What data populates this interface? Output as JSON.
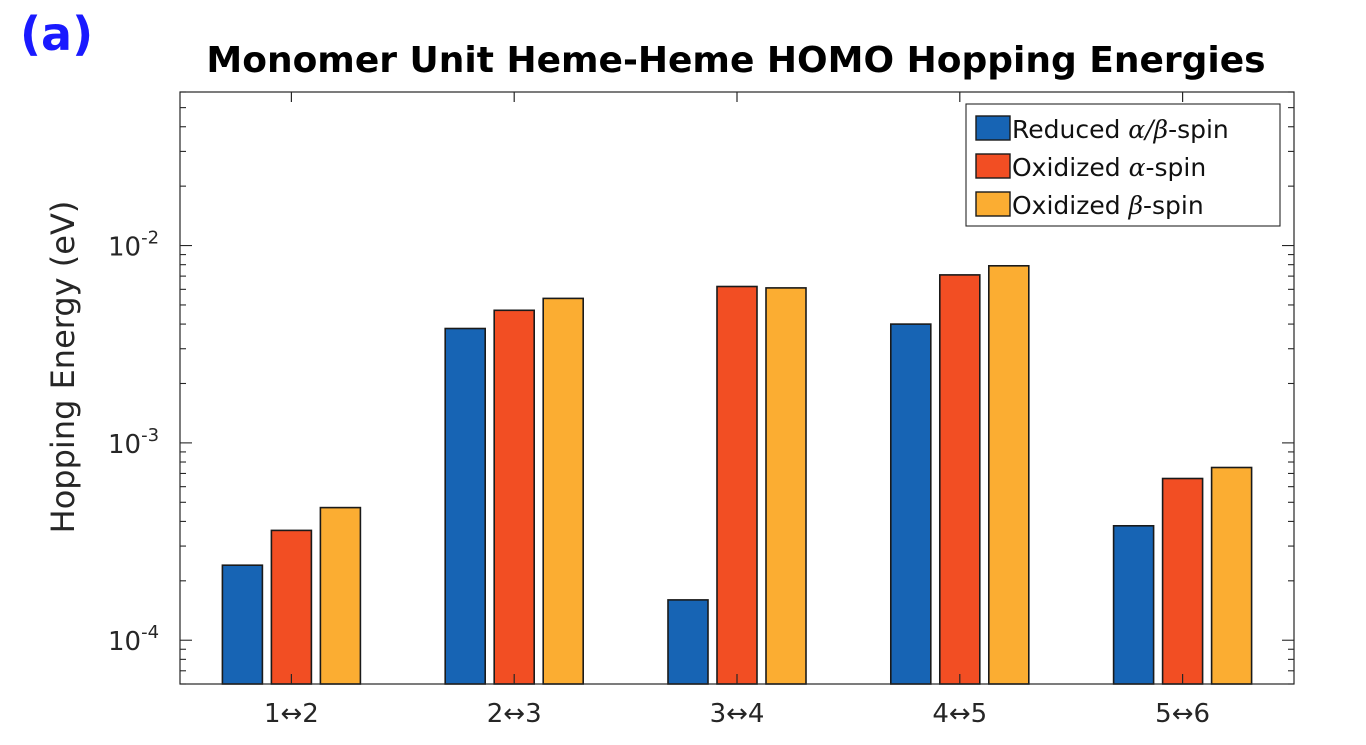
{
  "panel_label": "(a)",
  "chart_data": {
    "type": "bar",
    "title": "Monomer Unit Heme-Heme HOMO Hopping Energies",
    "ylabel": "Hopping Energy (eV)",
    "xlabel": "",
    "yscale": "log",
    "ylim": [
      6e-05,
      0.06
    ],
    "yticks": [
      {
        "value": 0.0001,
        "base": "10",
        "exp": "-4"
      },
      {
        "value": 0.001,
        "base": "10",
        "exp": "-3"
      },
      {
        "value": 0.01,
        "base": "10",
        "exp": "-2"
      }
    ],
    "categories": [
      "1↔2",
      "2↔3",
      "3↔4",
      "4↔5",
      "5↔6"
    ],
    "legend_position": "top-right",
    "grid": false,
    "series": [
      {
        "name": "Reduced α/β-spin",
        "name_parts": [
          "Reduced ",
          "α/β",
          "-spin"
        ],
        "color": "#1764b4",
        "values": [
          0.00024,
          0.0038,
          0.00016,
          0.004,
          0.00038
        ]
      },
      {
        "name": "Oxidized α-spin",
        "name_parts": [
          "Oxidized ",
          "α",
          "-spin"
        ],
        "color": "#f24e23",
        "values": [
          0.00036,
          0.0047,
          0.0062,
          0.0071,
          0.00066
        ]
      },
      {
        "name": "Oxidized β-spin",
        "name_parts": [
          "Oxidized ",
          "β",
          "-spin"
        ],
        "color": "#fbad32",
        "values": [
          0.00047,
          0.0054,
          0.0061,
          0.0079,
          0.00075
        ]
      }
    ]
  }
}
